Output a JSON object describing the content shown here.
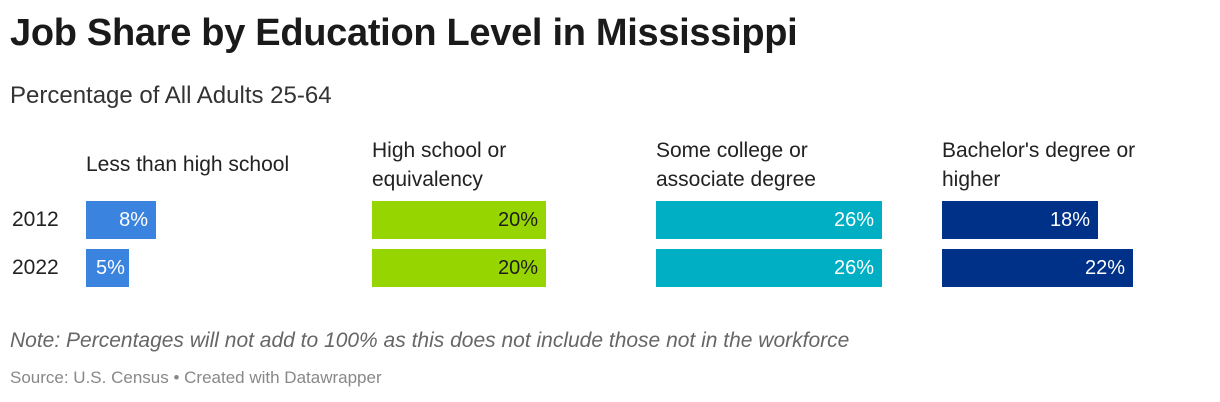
{
  "chart_data": {
    "type": "bar",
    "title": "Job Share by Education Level in Mississippi",
    "subtitle": "Percentage of All Adults 25-64",
    "categories": [
      "2012",
      "2022"
    ],
    "panels": [
      {
        "name": "Less than high school",
        "color": "#3a84e0",
        "text_color": "#ffffff",
        "values": [
          8,
          5
        ],
        "labels": [
          "8%",
          "5%"
        ]
      },
      {
        "name": "High school or equivalency",
        "color": "#97d500",
        "text_color": "#1d1d1d",
        "values": [
          20,
          20
        ],
        "labels": [
          "20%",
          "20%"
        ]
      },
      {
        "name": "Some college or associate degree",
        "color": "#00afc4",
        "text_color": "#ffffff",
        "values": [
          26,
          26
        ],
        "labels": [
          "26%",
          "26%"
        ]
      },
      {
        "name": "Bachelor's degree or higher",
        "color": "#003188",
        "text_color": "#ffffff",
        "values": [
          18,
          22
        ],
        "labels": [
          "18%",
          "22%"
        ]
      }
    ],
    "xlim": [
      0,
      26
    ],
    "grid": false,
    "legend": "none"
  },
  "note": "Note: Percentages will not add to 100% as this does not include those not in the workforce",
  "source": "Source: U.S. Census • Created with Datawrapper"
}
